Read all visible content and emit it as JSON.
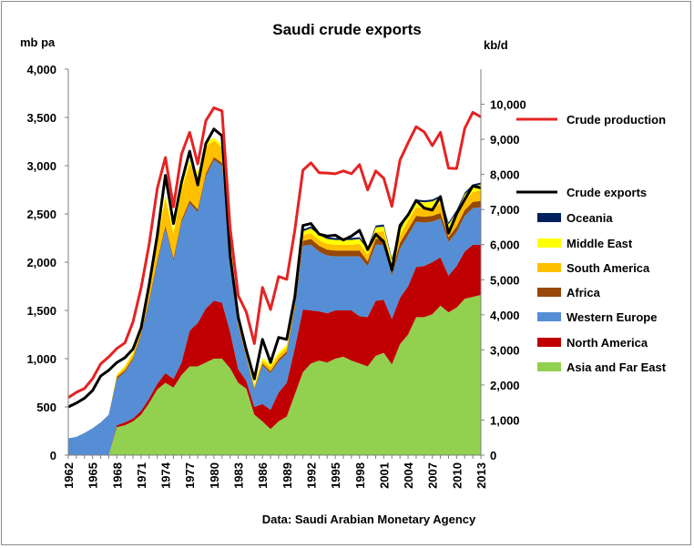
{
  "chart_data": {
    "type": "area",
    "title": "Saudi crude exports",
    "y_left_unit": "mb pa",
    "y_right_unit": "kb/d",
    "source_note": "Data: Saudi Arabian Monetary Agency",
    "ylim_left": [
      0,
      4000
    ],
    "ylim_right": [
      0,
      11000
    ],
    "y_left_ticks": [
      "0",
      "500",
      "1,000",
      "1,500",
      "2,000",
      "2,500",
      "3,000",
      "3,500",
      "4,000"
    ],
    "y_right_ticks": [
      "0",
      "1,000",
      "2,000",
      "3,000",
      "4,000",
      "5,000",
      "6,000",
      "7,000",
      "8,000",
      "9,000",
      "10,000"
    ],
    "x_tick_labels": [
      "1962",
      "1965",
      "1968",
      "1971",
      "1974",
      "1977",
      "1980",
      "1983",
      "1986",
      "1989",
      "1992",
      "1995",
      "1998",
      "2001",
      "2004",
      "2007",
      "2010",
      "2013"
    ],
    "x": [
      1962,
      1963,
      1964,
      1965,
      1966,
      1967,
      1968,
      1969,
      1970,
      1971,
      1972,
      1973,
      1974,
      1975,
      1976,
      1977,
      1978,
      1979,
      1980,
      1981,
      1982,
      1983,
      1984,
      1985,
      1986,
      1987,
      1988,
      1989,
      1990,
      1991,
      1992,
      1993,
      1994,
      1995,
      1996,
      1997,
      1998,
      1999,
      2000,
      2001,
      2002,
      2003,
      2004,
      2005,
      2006,
      2007,
      2008,
      2009,
      2010,
      2011,
      2012,
      2013
    ],
    "legend_order": [
      "Crude production",
      "Crude exports",
      "Oceania",
      "Middle East",
      "South America",
      "Africa",
      "Western Europe",
      "North America",
      "Asia and Far East"
    ],
    "stacked_series": [
      {
        "name": "Asia and Far East",
        "color": "#92d050",
        "values": [
          0,
          0,
          0,
          0,
          0,
          0,
          290,
          310,
          350,
          420,
          540,
          680,
          750,
          700,
          830,
          920,
          920,
          960,
          1000,
          1000,
          900,
          750,
          690,
          420,
          350,
          270,
          350,
          400,
          630,
          860,
          950,
          980,
          960,
          1000,
          1020,
          980,
          950,
          920,
          1030,
          1060,
          940,
          1150,
          1250,
          1430,
          1430,
          1460,
          1550,
          1480,
          1530,
          1620,
          1640,
          1660
        ]
      },
      {
        "name": "North America",
        "color": "#c00000",
        "values": [
          0,
          0,
          0,
          0,
          0,
          0,
          20,
          30,
          30,
          40,
          50,
          60,
          100,
          90,
          130,
          370,
          450,
          560,
          600,
          580,
          380,
          140,
          80,
          80,
          180,
          200,
          300,
          350,
          480,
          650,
          550,
          510,
          510,
          500,
          480,
          520,
          490,
          510,
          570,
          550,
          470,
          480,
          500,
          520,
          530,
          540,
          500,
          380,
          430,
          490,
          540,
          520
        ]
      },
      {
        "name": "Western Europe",
        "color": "#558ed5",
        "values": [
          175,
          190,
          230,
          280,
          340,
          420,
          480,
          520,
          610,
          780,
          1000,
          1250,
          1500,
          1220,
          1450,
          1320,
          1150,
          1370,
          1460,
          1420,
          860,
          440,
          240,
          180,
          400,
          380,
          320,
          300,
          400,
          660,
          680,
          620,
          600,
          560,
          560,
          560,
          620,
          530,
          580,
          570,
          450,
          510,
          530,
          470,
          450,
          420,
          400,
          350,
          350,
          370,
          380,
          390
        ]
      },
      {
        "name": "Africa",
        "color": "#984807",
        "values": [
          0,
          0,
          0,
          0,
          0,
          0,
          20,
          20,
          20,
          20,
          25,
          30,
          30,
          30,
          30,
          30,
          30,
          30,
          30,
          30,
          30,
          20,
          15,
          15,
          20,
          20,
          25,
          25,
          30,
          50,
          60,
          60,
          60,
          60,
          60,
          60,
          60,
          50,
          60,
          60,
          50,
          60,
          60,
          60,
          60,
          60,
          60,
          50,
          60,
          60,
          65,
          65
        ]
      },
      {
        "name": "South America",
        "color": "#ffc000",
        "values": [
          0,
          0,
          0,
          0,
          0,
          0,
          20,
          30,
          40,
          60,
          100,
          200,
          280,
          250,
          300,
          380,
          340,
          280,
          170,
          160,
          100,
          40,
          20,
          20,
          30,
          40,
          40,
          40,
          40,
          60,
          60,
          60,
          60,
          60,
          60,
          60,
          70,
          70,
          70,
          80,
          60,
          80,
          90,
          90,
          90,
          90,
          100,
          70,
          90,
          100,
          100,
          110
        ]
      },
      {
        "name": "Middle East",
        "color": "#ffff00",
        "values": [
          0,
          0,
          0,
          0,
          0,
          0,
          10,
          15,
          20,
          20,
          25,
          30,
          40,
          40,
          40,
          40,
          40,
          40,
          30,
          30,
          30,
          30,
          30,
          30,
          30,
          30,
          30,
          30,
          30,
          40,
          50,
          50,
          50,
          50,
          50,
          50,
          50,
          50,
          50,
          50,
          50,
          50,
          60,
          60,
          60,
          60,
          60,
          60,
          60,
          60,
          60,
          60
        ]
      },
      {
        "name": "Oceania",
        "color": "#002060",
        "values": [
          0,
          0,
          0,
          0,
          0,
          0,
          0,
          0,
          0,
          0,
          0,
          0,
          0,
          0,
          0,
          0,
          0,
          0,
          0,
          0,
          0,
          0,
          0,
          0,
          0,
          0,
          0,
          0,
          0,
          20,
          20,
          20,
          20,
          20,
          20,
          20,
          20,
          20,
          20,
          20,
          20,
          20,
          20,
          20,
          20,
          20,
          20,
          20,
          20,
          20,
          20,
          20
        ]
      }
    ],
    "line_series": [
      {
        "name": "Crude exports",
        "axis": "left",
        "color": "#000000",
        "values": [
          500,
          540,
          590,
          670,
          820,
          880,
          960,
          1010,
          1100,
          1320,
          1770,
          2280,
          2900,
          2400,
          2830,
          3150,
          2800,
          3230,
          3380,
          3310,
          2070,
          1430,
          1090,
          790,
          1200,
          960,
          1220,
          1200,
          1640,
          2380,
          2400,
          2290,
          2270,
          2280,
          2230,
          2270,
          2330,
          2130,
          2290,
          2210,
          1920,
          2380,
          2490,
          2640,
          2560,
          2540,
          2680,
          2300,
          2500,
          2650,
          2790,
          2770
        ]
      },
      {
        "name": "Crude production",
        "axis": "right",
        "color": "#e52323",
        "values": [
          1640,
          1790,
          1900,
          2180,
          2600,
          2800,
          3040,
          3200,
          3800,
          4770,
          6020,
          7600,
          8480,
          7080,
          8580,
          9200,
          8300,
          9530,
          9900,
          9810,
          6480,
          4550,
          4080,
          3180,
          4780,
          4150,
          5090,
          5010,
          6410,
          8120,
          8330,
          8050,
          8040,
          8020,
          8100,
          8020,
          8280,
          7560,
          8100,
          7890,
          7090,
          8410,
          8900,
          9360,
          9210,
          8820,
          9200,
          8180,
          8170,
          9310,
          9770,
          9640
        ]
      }
    ]
  }
}
